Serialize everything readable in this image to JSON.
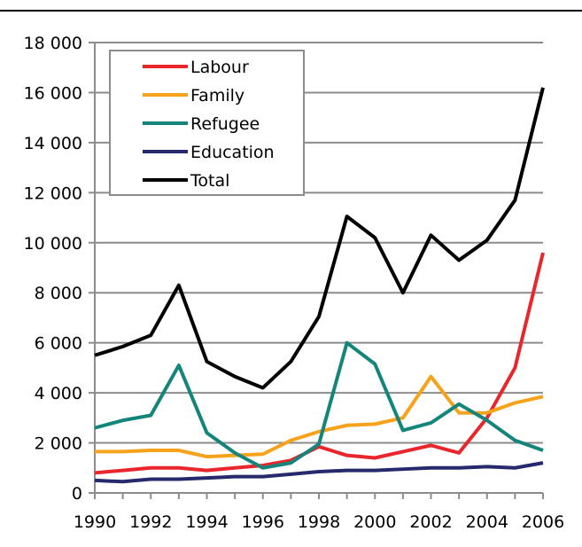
{
  "chart_data": {
    "type": "line",
    "title": "",
    "xlabel": "",
    "ylabel": "",
    "x": [
      1990,
      1991,
      1992,
      1993,
      1994,
      1995,
      1996,
      1997,
      1998,
      1999,
      2000,
      2001,
      2002,
      2003,
      2004,
      2005,
      2006
    ],
    "x_ticks": [
      "1990",
      "1992",
      "1994",
      "1996",
      "1998",
      "2000",
      "2002",
      "2004",
      "2006"
    ],
    "y_ticks": [
      "0",
      "2 000",
      "4 000",
      "6 000",
      "8 000",
      "10 000",
      "12 000",
      "14 000",
      "16 000",
      "18 000"
    ],
    "xlim": [
      1990,
      2006
    ],
    "ylim": [
      0,
      18000
    ],
    "grid": "horizontal",
    "legend_position": "top-left",
    "series": [
      {
        "name": "Labour",
        "color": "#e8262b",
        "values": [
          800,
          900,
          1000,
          1000,
          900,
          1000,
          1100,
          1300,
          1850,
          1500,
          1400,
          1650,
          1900,
          1600,
          3000,
          5000,
          9600
        ]
      },
      {
        "name": "Family",
        "color": "#f7a21b",
        "values": [
          1650,
          1650,
          1700,
          1700,
          1450,
          1500,
          1550,
          2100,
          2450,
          2700,
          2750,
          3000,
          4650,
          3200,
          3200,
          3600,
          3850
        ]
      },
      {
        "name": "Refugee",
        "color": "#14857a",
        "values": [
          2600,
          2900,
          3100,
          5100,
          2400,
          1600,
          1000,
          1200,
          1950,
          6000,
          5150,
          2500,
          2800,
          3550,
          2900,
          2100,
          1700
        ]
      },
      {
        "name": "Education",
        "color": "#27296d",
        "values": [
          500,
          450,
          550,
          550,
          600,
          650,
          650,
          750,
          850,
          900,
          900,
          950,
          1000,
          1000,
          1050,
          1000,
          1200
        ]
      },
      {
        "name": "Total",
        "color": "#000000",
        "values": [
          5500,
          5850,
          6300,
          8300,
          5250,
          4650,
          4200,
          5250,
          7050,
          11050,
          10200,
          8000,
          10300,
          9300,
          10100,
          11700,
          16200
        ]
      }
    ]
  }
}
